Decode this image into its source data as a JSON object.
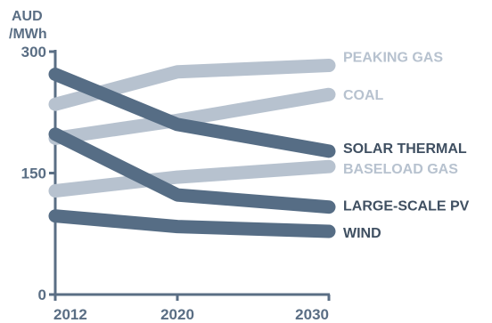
{
  "chart_data": {
    "type": "line",
    "ylabel": "AUD\n/MWh",
    "ylabel_lines": [
      "AUD",
      "/MWh"
    ],
    "ylim": [
      0,
      300
    ],
    "yticks": [
      "0",
      "150",
      "300"
    ],
    "x": [
      "2012",
      "2020",
      "2030"
    ],
    "grid": false,
    "legend": "inline-right",
    "series": [
      {
        "name": "PEAKING GAS",
        "values": [
          235,
          275,
          283
        ],
        "color": "#b7c2cf",
        "emphasis": "light"
      },
      {
        "name": "COAL",
        "values": [
          193,
          215,
          247
        ],
        "color": "#b7c2cf",
        "emphasis": "light"
      },
      {
        "name": "BASELOAD GAS",
        "values": [
          128,
          145,
          158
        ],
        "color": "#b7c2cf",
        "emphasis": "light"
      },
      {
        "name": "SOLAR THERMAL",
        "values": [
          272,
          210,
          177
        ],
        "color": "#566d85",
        "emphasis": "dark"
      },
      {
        "name": "LARGE-SCALE PV",
        "values": [
          198,
          123,
          108
        ],
        "color": "#566d85",
        "emphasis": "dark"
      },
      {
        "name": "WIND",
        "values": [
          97,
          84,
          78
        ],
        "color": "#566d85",
        "emphasis": "dark"
      }
    ]
  },
  "colors": {
    "axis": "#5a6e84",
    "light_series": "#b7c2cf",
    "dark_series": "#566d85",
    "dark_label": "#3f4f61",
    "light_label": "#b7c2cf"
  }
}
